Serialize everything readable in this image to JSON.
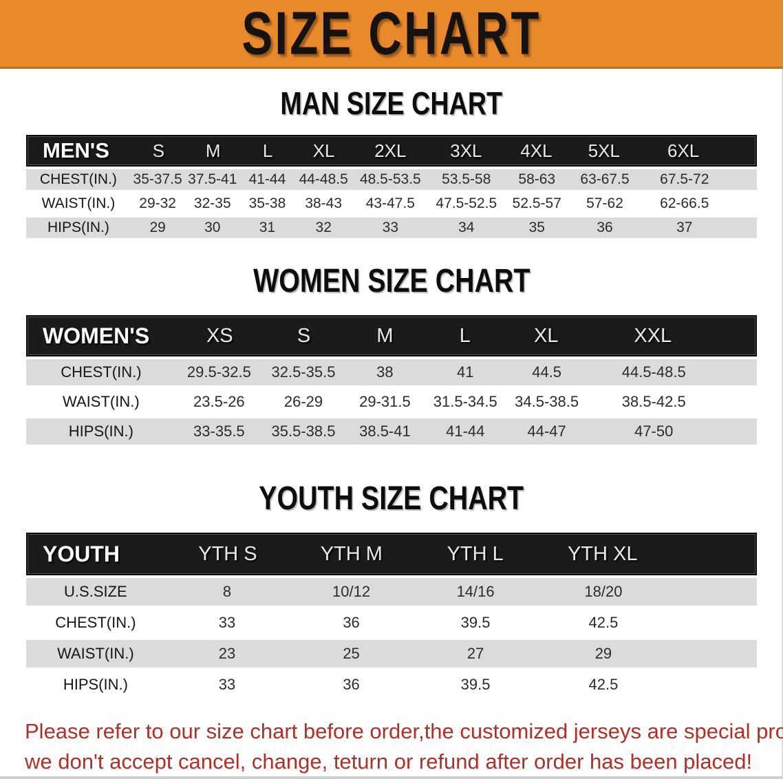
{
  "banner": {
    "title": "SIZE CHART",
    "bg_color": "#E8892B"
  },
  "colors": {
    "banner_orange": "#E8892B",
    "table_header_black": "#1B1B1B",
    "stripe_gray": "#DBDBDB",
    "footer_red": "#AE3129"
  },
  "men": {
    "heading": "MAN SIZE CHART",
    "corner_label": "MEN'S",
    "columns": [
      "S",
      "M",
      "L",
      "XL",
      "2XL",
      "3XL",
      "4XL",
      "5XL",
      "6XL"
    ],
    "rows": [
      {
        "label": "CHEST(IN.)",
        "v": [
          "35-37.5",
          "37.5-41",
          "41-44",
          "44-48.5",
          "48.5-53.5",
          "53.5-58",
          "58-63",
          "63-67.5",
          "67.5-72"
        ]
      },
      {
        "label": "WAIST(IN.)",
        "v": [
          "29-32",
          "32-35",
          "35-38",
          "38-43",
          "43-47.5",
          "47.5-52.5",
          "52.5-57",
          "57-62",
          "62-66.5"
        ]
      },
      {
        "label": "HIPS(IN.)",
        "v": [
          "29",
          "30",
          "31",
          "32",
          "33",
          "34",
          "35",
          "36",
          "37"
        ]
      }
    ]
  },
  "women": {
    "heading": "WOMEN SIZE CHART",
    "corner_label": "WOMEN'S",
    "columns": [
      "XS",
      "S",
      "M",
      "L",
      "XL",
      "XXL"
    ],
    "rows": [
      {
        "label": "CHEST(IN.)",
        "v": [
          "29.5-32.5",
          "32.5-35.5",
          "38",
          "41",
          "44.5",
          "44.5-48.5"
        ]
      },
      {
        "label": "WAIST(IN.)",
        "v": [
          "23.5-26",
          "26-29",
          "29-31.5",
          "31.5-34.5",
          "34.5-38.5",
          "38.5-42.5"
        ]
      },
      {
        "label": "HIPS(IN.)",
        "v": [
          "33-35.5",
          "35.5-38.5",
          "38.5-41",
          "41-44",
          "44-47",
          "47-50"
        ]
      }
    ]
  },
  "youth": {
    "heading": "YOUTH SIZE CHART",
    "corner_label": "YOUTH",
    "columns": [
      "YTH S",
      "YTH M",
      "YTH L",
      "YTH XL"
    ],
    "rows": [
      {
        "label": "U.S.SIZE",
        "v": [
          "8",
          "10/12",
          "14/16",
          "18/20"
        ]
      },
      {
        "label": "CHEST(IN.)",
        "v": [
          "33",
          "36",
          "39.5",
          "42.5"
        ]
      },
      {
        "label": "WAIST(IN.)",
        "v": [
          "23",
          "25",
          "27",
          "29"
        ]
      },
      {
        "label": "HIPS(IN.)",
        "v": [
          "33",
          "36",
          "39.5",
          "42.5"
        ]
      }
    ]
  },
  "footer": {
    "line1": "Please refer to our size chart before order,the customized jerseys are special products,",
    "line2": "we don't accept cancel, change, teturn or refund after order has been placed!"
  }
}
